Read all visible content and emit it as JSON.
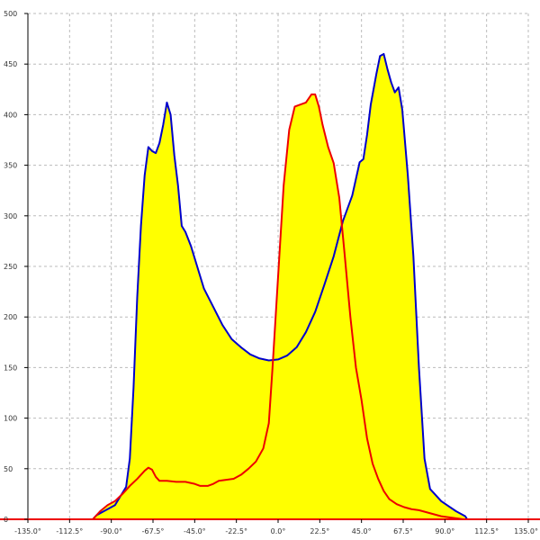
{
  "chart_data": {
    "type": "area",
    "title": "",
    "xlabel": "",
    "ylabel": "",
    "xlim": [
      -135,
      135
    ],
    "ylim": [
      0,
      500
    ],
    "grid": true,
    "x_ticks": [
      -135,
      -112.5,
      -90,
      -67.5,
      -45,
      -22.5,
      0,
      22.5,
      45,
      67.5,
      90,
      112.5,
      135
    ],
    "x_tick_labels": [
      "-135.0°",
      "-112.5°",
      "-90.0°",
      "-67.5°",
      "-45.0°",
      "-22.5°",
      "0.0°",
      "22.5°",
      "45.0°",
      "67.5°",
      "90.0°",
      "112.5°",
      "135.0°"
    ],
    "y_ticks": [
      0,
      50,
      100,
      150,
      200,
      250,
      300,
      350,
      400,
      450,
      500
    ],
    "y_tick_labels": [
      "0",
      "50",
      "100",
      "150",
      "200",
      "250",
      "300",
      "350",
      "400",
      "450",
      "500"
    ],
    "series": [
      {
        "color": "#0000cc",
        "fill": "#ffff00",
        "points": [
          [
            -100,
            0
          ],
          [
            -98,
            4
          ],
          [
            -95,
            7
          ],
          [
            -92,
            10
          ],
          [
            -90,
            12
          ],
          [
            -88,
            14
          ],
          [
            -86,
            20
          ],
          [
            -84,
            26
          ],
          [
            -82,
            32
          ],
          [
            -80,
            60
          ],
          [
            -78,
            130
          ],
          [
            -76,
            220
          ],
          [
            -74,
            290
          ],
          [
            -72,
            340
          ],
          [
            -70,
            368
          ],
          [
            -68,
            364
          ],
          [
            -66,
            362
          ],
          [
            -64,
            372
          ],
          [
            -62,
            390
          ],
          [
            -60,
            412
          ],
          [
            -58,
            400
          ],
          [
            -56,
            360
          ],
          [
            -54,
            330
          ],
          [
            -52,
            290
          ],
          [
            -50,
            284
          ],
          [
            -47,
            270
          ],
          [
            -45,
            258
          ],
          [
            -42,
            240
          ],
          [
            -40,
            228
          ],
          [
            -35,
            210
          ],
          [
            -30,
            192
          ],
          [
            -25,
            178
          ],
          [
            -20,
            170
          ],
          [
            -15,
            163
          ],
          [
            -10,
            159
          ],
          [
            -5,
            157
          ],
          [
            0,
            158
          ],
          [
            5,
            162
          ],
          [
            10,
            170
          ],
          [
            15,
            185
          ],
          [
            20,
            205
          ],
          [
            25,
            232
          ],
          [
            30,
            260
          ],
          [
            35,
            295
          ],
          [
            40,
            320
          ],
          [
            44,
            353
          ],
          [
            46,
            356
          ],
          [
            48,
            380
          ],
          [
            50,
            410
          ],
          [
            53,
            440
          ],
          [
            55,
            458
          ],
          [
            57,
            460
          ],
          [
            59,
            445
          ],
          [
            61,
            432
          ],
          [
            63,
            422
          ],
          [
            65,
            427
          ],
          [
            67,
            405
          ],
          [
            70,
            340
          ],
          [
            73,
            260
          ],
          [
            76,
            150
          ],
          [
            79,
            60
          ],
          [
            82,
            30
          ],
          [
            85,
            24
          ],
          [
            88,
            18
          ],
          [
            92,
            13
          ],
          [
            96,
            8
          ],
          [
            99,
            5
          ],
          [
            101,
            3
          ],
          [
            102,
            0
          ]
        ]
      },
      {
        "color": "#ee0000",
        "fill": "#ffff00",
        "points": [
          [
            -100,
            0
          ],
          [
            -96,
            8
          ],
          [
            -92,
            14
          ],
          [
            -88,
            18
          ],
          [
            -84,
            25
          ],
          [
            -80,
            33
          ],
          [
            -76,
            40
          ],
          [
            -72,
            48
          ],
          [
            -70,
            51
          ],
          [
            -68,
            49
          ],
          [
            -66,
            42
          ],
          [
            -64,
            38
          ],
          [
            -60,
            38
          ],
          [
            -55,
            37
          ],
          [
            -50,
            37
          ],
          [
            -45,
            35
          ],
          [
            -42,
            33
          ],
          [
            -38,
            33
          ],
          [
            -35,
            35
          ],
          [
            -32,
            38
          ],
          [
            -28,
            39
          ],
          [
            -24,
            40
          ],
          [
            -20,
            44
          ],
          [
            -16,
            50
          ],
          [
            -12,
            57
          ],
          [
            -8,
            70
          ],
          [
            -5,
            95
          ],
          [
            -3,
            150
          ],
          [
            0,
            240
          ],
          [
            3,
            330
          ],
          [
            6,
            385
          ],
          [
            9,
            408
          ],
          [
            12,
            410
          ],
          [
            15,
            412
          ],
          [
            18,
            420
          ],
          [
            20,
            420
          ],
          [
            22,
            408
          ],
          [
            24,
            390
          ],
          [
            27,
            368
          ],
          [
            30,
            352
          ],
          [
            33,
            318
          ],
          [
            36,
            260
          ],
          [
            39,
            200
          ],
          [
            42,
            150
          ],
          [
            45,
            118
          ],
          [
            48,
            80
          ],
          [
            51,
            55
          ],
          [
            54,
            40
          ],
          [
            57,
            28
          ],
          [
            60,
            20
          ],
          [
            64,
            15
          ],
          [
            68,
            12
          ],
          [
            72,
            10
          ],
          [
            76,
            9
          ],
          [
            80,
            7
          ],
          [
            84,
            5
          ],
          [
            88,
            3
          ],
          [
            92,
            2
          ],
          [
            96,
            1
          ],
          [
            100,
            0
          ]
        ]
      }
    ]
  }
}
